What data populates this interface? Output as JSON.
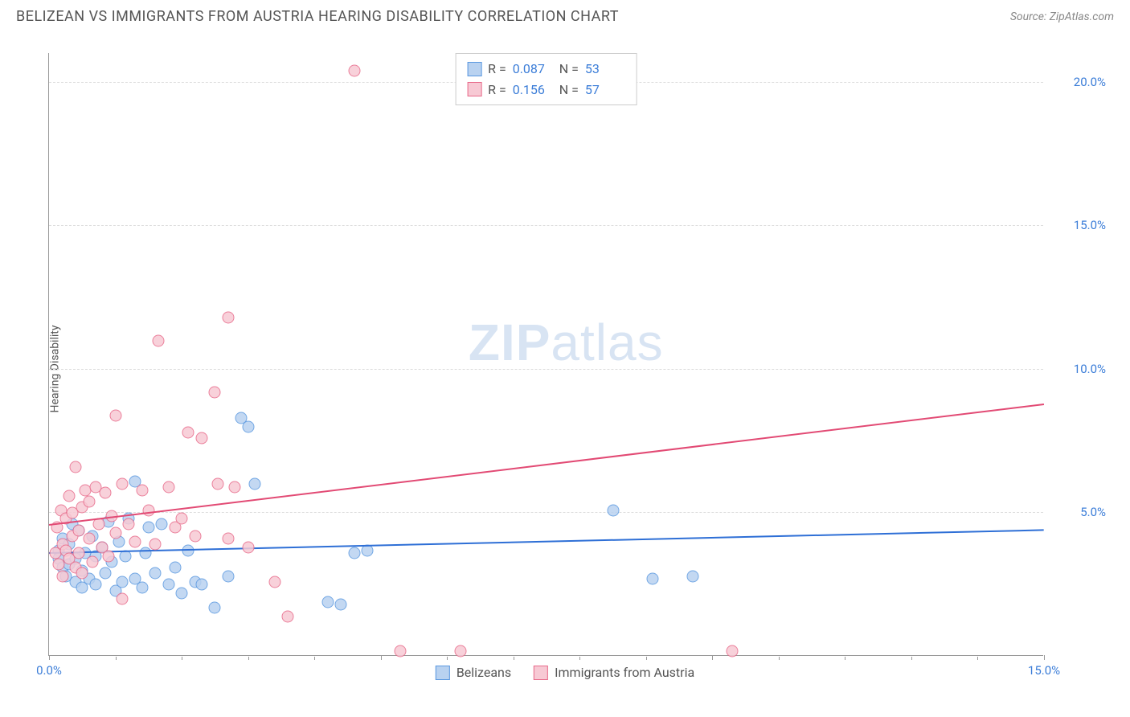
{
  "title": "BELIZEAN VS IMMIGRANTS FROM AUSTRIA HEARING DISABILITY CORRELATION CHART",
  "source": "Source: ZipAtlas.com",
  "ylabel": "Hearing Disability",
  "watermark_a": "ZIP",
  "watermark_b": "atlas",
  "chart": {
    "type": "scatter",
    "xlim": [
      0,
      15
    ],
    "ylim": [
      0,
      21
    ],
    "x_ticks": [
      0,
      5,
      10,
      15
    ],
    "x_tick_labels": [
      "0.0%",
      "",
      "",
      "15.0%"
    ],
    "x_minor_ticks": [
      1,
      2,
      3,
      4,
      6,
      7,
      8,
      9,
      11,
      12,
      13,
      14
    ],
    "y_ticks": [
      5,
      10,
      15,
      20
    ],
    "y_tick_labels": [
      "5.0%",
      "10.0%",
      "15.0%",
      "20.0%"
    ],
    "background_color": "#ffffff",
    "grid_color": "#dddddd",
    "axis_color": "#999999",
    "tick_label_color": "#3b7dd8"
  },
  "series": [
    {
      "name": "Belizeans",
      "fill": "#b9d2f0",
      "stroke": "#5a98e0",
      "trend_color": "#2e6fd6",
      "r_value": "0.087",
      "n_value": "53",
      "trend": {
        "x1": 0,
        "y1": 3.6,
        "x2": 15,
        "y2": 4.4
      },
      "points": [
        [
          4.8,
          4.1
        ],
        [
          0.15,
          4.1
        ],
        [
          0.15,
          3.8
        ],
        [
          0.2,
          3.5
        ],
        [
          0.2,
          4.5
        ],
        [
          0.25,
          3.2
        ],
        [
          0.3,
          3.6
        ],
        [
          0.3,
          4.3
        ],
        [
          0.35,
          5.0
        ],
        [
          0.4,
          3.0
        ],
        [
          0.4,
          3.8
        ],
        [
          0.45,
          4.8
        ],
        [
          0.5,
          3.4
        ],
        [
          0.5,
          2.8
        ],
        [
          0.55,
          4.0
        ],
        [
          0.6,
          3.1
        ],
        [
          0.65,
          4.6
        ],
        [
          0.7,
          3.9
        ],
        [
          0.7,
          2.9
        ],
        [
          0.8,
          4.2
        ],
        [
          0.85,
          3.3
        ],
        [
          0.9,
          5.1
        ],
        [
          0.95,
          3.7
        ],
        [
          1.0,
          2.7
        ],
        [
          1.05,
          4.4
        ],
        [
          1.1,
          3.0
        ],
        [
          1.15,
          3.9
        ],
        [
          1.2,
          5.2
        ],
        [
          1.3,
          3.1
        ],
        [
          1.3,
          6.5
        ],
        [
          1.4,
          2.8
        ],
        [
          1.45,
          4.0
        ],
        [
          1.5,
          4.9
        ],
        [
          1.6,
          3.3
        ],
        [
          1.7,
          5.0
        ],
        [
          1.8,
          2.9
        ],
        [
          1.9,
          3.5
        ],
        [
          2.0,
          2.6
        ],
        [
          2.1,
          4.1
        ],
        [
          2.2,
          3.0
        ],
        [
          2.3,
          2.9
        ],
        [
          2.5,
          2.1
        ],
        [
          2.7,
          3.2
        ],
        [
          2.9,
          8.7
        ],
        [
          3.0,
          8.4
        ],
        [
          3.1,
          6.4
        ],
        [
          4.2,
          2.3
        ],
        [
          4.4,
          2.2
        ],
        [
          4.6,
          4.0
        ],
        [
          8.5,
          5.5
        ],
        [
          9.1,
          3.1
        ],
        [
          9.7,
          3.2
        ]
      ]
    },
    {
      "name": "Immigrants from Austria",
      "fill": "#f7c9d4",
      "stroke": "#e86a8a",
      "trend_color": "#e24a74",
      "r_value": "0.156",
      "n_value": "57",
      "trend": {
        "x1": 0,
        "y1": 4.6,
        "x2": 15,
        "y2": 8.8
      },
      "points": [
        [
          0.1,
          4.0
        ],
        [
          0.12,
          4.9
        ],
        [
          0.15,
          3.6
        ],
        [
          0.18,
          5.5
        ],
        [
          0.2,
          4.3
        ],
        [
          0.2,
          3.2
        ],
        [
          0.25,
          5.2
        ],
        [
          0.25,
          4.1
        ],
        [
          0.3,
          6.0
        ],
        [
          0.3,
          3.8
        ],
        [
          0.35,
          4.6
        ],
        [
          0.35,
          5.4
        ],
        [
          0.4,
          3.5
        ],
        [
          0.4,
          7.0
        ],
        [
          0.45,
          4.8
        ],
        [
          0.45,
          4.0
        ],
        [
          0.5,
          5.6
        ],
        [
          0.5,
          3.3
        ],
        [
          0.55,
          6.2
        ],
        [
          0.6,
          4.5
        ],
        [
          0.6,
          5.8
        ],
        [
          0.65,
          3.7
        ],
        [
          0.7,
          6.3
        ],
        [
          0.75,
          5.0
        ],
        [
          0.8,
          4.2
        ],
        [
          0.85,
          6.1
        ],
        [
          0.9,
          3.9
        ],
        [
          0.95,
          5.3
        ],
        [
          1.0,
          8.8
        ],
        [
          1.0,
          4.7
        ],
        [
          1.1,
          6.4
        ],
        [
          1.1,
          2.4
        ],
        [
          1.2,
          5.0
        ],
        [
          1.3,
          4.4
        ],
        [
          1.4,
          6.2
        ],
        [
          1.5,
          5.5
        ],
        [
          1.6,
          4.3
        ],
        [
          1.65,
          11.4
        ],
        [
          1.8,
          6.3
        ],
        [
          1.9,
          4.9
        ],
        [
          2.0,
          5.2
        ],
        [
          2.1,
          8.2
        ],
        [
          2.2,
          4.6
        ],
        [
          2.3,
          8.0
        ],
        [
          2.5,
          9.6
        ],
        [
          2.55,
          6.4
        ],
        [
          2.7,
          4.5
        ],
        [
          2.7,
          12.2
        ],
        [
          2.8,
          6.3
        ],
        [
          3.0,
          4.2
        ],
        [
          3.4,
          3.0
        ],
        [
          3.6,
          1.8
        ],
        [
          4.6,
          20.8
        ],
        [
          5.3,
          0.6
        ],
        [
          6.2,
          0.6
        ],
        [
          10.3,
          0.6
        ]
      ]
    }
  ]
}
